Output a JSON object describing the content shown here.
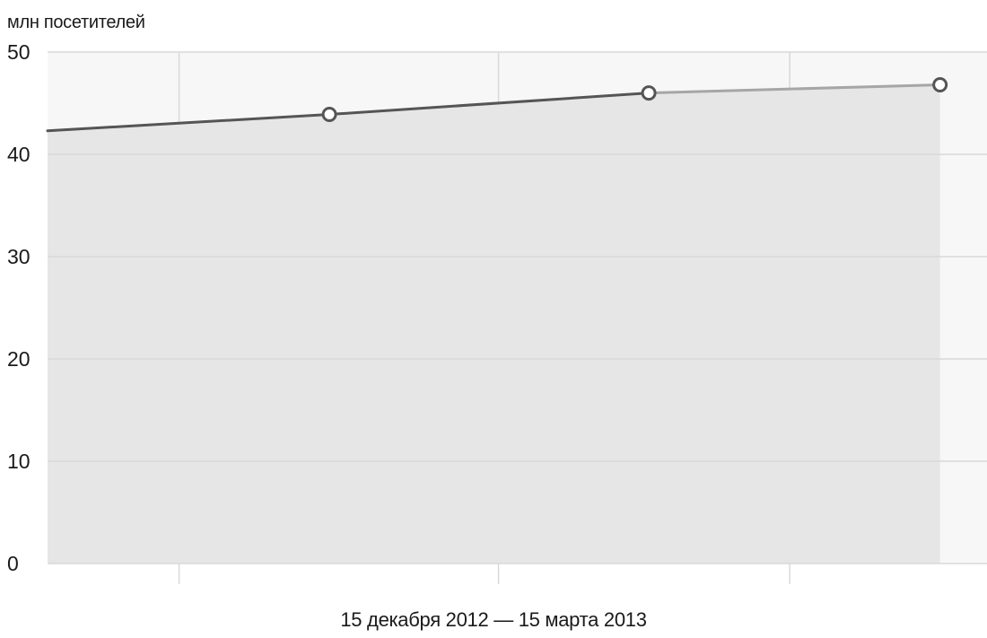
{
  "chart_data": {
    "type": "line",
    "ylabel": "млн посетителей",
    "xlabel": "15 декабря 2012 — 15 марта 2013",
    "ylim": [
      0,
      50
    ],
    "yticks": [
      0,
      10,
      20,
      30,
      40,
      50
    ],
    "xlim": [
      0,
      1
    ],
    "x_gridlines": [
      0.14,
      0.48,
      0.79
    ],
    "series": [
      {
        "points": [
          {
            "x": 0.0,
            "y": 42.3,
            "marker": false
          },
          {
            "x": 0.3,
            "y": 43.9,
            "marker": true
          },
          {
            "x": 0.64,
            "y": 46.0,
            "marker": true
          },
          {
            "x": 0.95,
            "y": 46.8,
            "marker": true
          }
        ]
      }
    ],
    "grid": true
  },
  "colors": {
    "plot_bg": "#f7f7f7",
    "area_fill": "#e6e6e6",
    "gridline": "#d9d9d9",
    "line_dark": "#555555",
    "line_light": "#a6a6a6",
    "marker_stroke": "#555555",
    "marker_fill": "#ffffff"
  }
}
